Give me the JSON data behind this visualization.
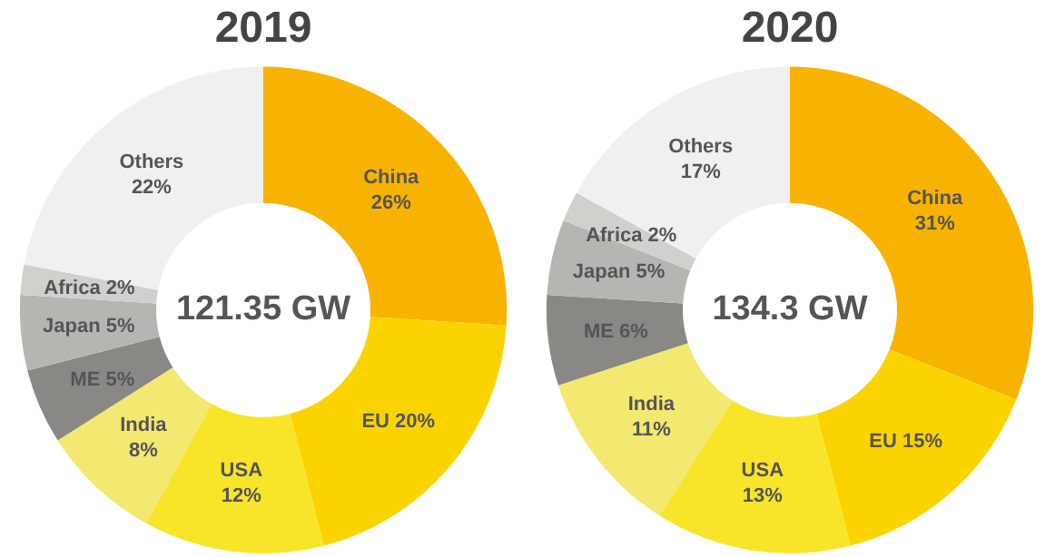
{
  "chart_data": [
    {
      "type": "donut",
      "title": "2019",
      "categories": [
        "China",
        "EU",
        "USA",
        "India",
        "ME",
        "Japan",
        "Africa",
        "Others"
      ],
      "values": [
        26,
        20,
        12,
        8,
        5,
        5,
        2,
        22
      ],
      "value_labels": [
        "26%",
        "20%",
        "12%",
        "8%",
        "5%",
        "5%",
        "2%",
        "22%"
      ],
      "colors": [
        "#f8b300",
        "#fbd400",
        "#f8e52a",
        "#f3e870",
        "#8a8884",
        "#b7b5b1",
        "#d2d0cc",
        "#f1f0ee"
      ],
      "annotations": [
        "121.35 GW"
      ],
      "legend": false
    },
    {
      "type": "donut",
      "title": "2020",
      "categories": [
        "China",
        "EU",
        "USA",
        "India",
        "ME",
        "Japan",
        "Africa",
        "Others"
      ],
      "values": [
        31,
        15,
        13,
        11,
        6,
        5,
        2,
        17
      ],
      "value_labels": [
        "31%",
        "15%",
        "13%",
        "11%",
        "6%",
        "5%",
        "2%",
        "17%"
      ],
      "colors": [
        "#f8b300",
        "#fbd400",
        "#f8e52a",
        "#f3e870",
        "#8a8884",
        "#b7b5b1",
        "#d2d0cc",
        "#f1f0ee"
      ],
      "annotations": [
        "134.3 GW"
      ],
      "legend": false
    }
  ]
}
